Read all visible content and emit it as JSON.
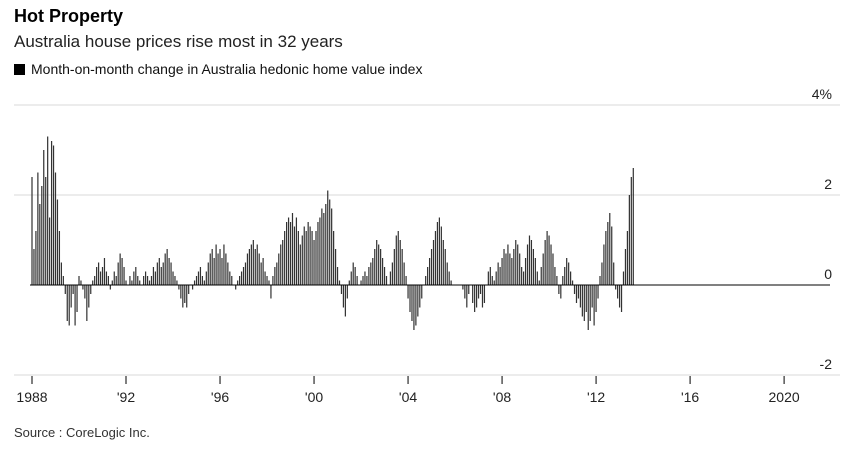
{
  "header": {
    "title": "Hot Property",
    "subtitle": "Australia house prices rise most in 32 years",
    "legend_label": "Month-on-month change in Australia hedonic home value index"
  },
  "footer": {
    "source": "Source : CoreLogic Inc."
  },
  "colors": {
    "bar": "#333333",
    "gridline": "#d9d9d9",
    "zero_line": "#000000",
    "background": "#ffffff"
  },
  "chart_data": {
    "type": "bar",
    "title": "Hot Property",
    "subtitle": "Australia house prices rise most in 32 years",
    "series_name": "Month-on-month change in Australia hedonic home value index",
    "xlabel": "",
    "ylabel": "%",
    "ylim": [
      -2,
      4
    ],
    "yticks": [
      {
        "value": 4,
        "label": "4%"
      },
      {
        "value": 2,
        "label": "2"
      },
      {
        "value": 0,
        "label": "0"
      },
      {
        "value": -2,
        "label": "-2"
      }
    ],
    "xlim": [
      1988,
      2021.4
    ],
    "xticks": [
      {
        "value": 1988,
        "label": "1988"
      },
      {
        "value": 1992,
        "label": "'92"
      },
      {
        "value": 1996,
        "label": "'96"
      },
      {
        "value": 2000,
        "label": "'00"
      },
      {
        "value": 2004,
        "label": "'04"
      },
      {
        "value": 2008,
        "label": "'08"
      },
      {
        "value": 2012,
        "label": "'12"
      },
      {
        "value": 2016,
        "label": "'16"
      },
      {
        "value": 2020,
        "label": "2020"
      }
    ],
    "start_year": 1988,
    "start_month": 1,
    "frequency": "monthly",
    "values": [
      2.4,
      0.8,
      1.2,
      2.5,
      1.8,
      2.2,
      3.0,
      2.4,
      3.3,
      1.5,
      3.2,
      3.1,
      2.5,
      1.9,
      1.2,
      0.5,
      0.2,
      -0.2,
      -0.8,
      -0.9,
      -0.5,
      -0.2,
      -0.9,
      -0.6,
      0.2,
      0.1,
      -0.1,
      -0.3,
      -0.8,
      -0.5,
      -0.2,
      0.1,
      0.2,
      0.4,
      0.5,
      0.3,
      0.4,
      0.6,
      0.3,
      0.2,
      -0.1,
      0.1,
      0.3,
      0.2,
      0.5,
      0.7,
      0.6,
      0.4,
      0.1,
      0.0,
      0.2,
      0.1,
      0.3,
      0.4,
      0.2,
      0.1,
      0.0,
      0.2,
      0.3,
      0.2,
      0.1,
      0.2,
      0.4,
      0.3,
      0.5,
      0.6,
      0.4,
      0.5,
      0.7,
      0.8,
      0.6,
      0.5,
      0.3,
      0.2,
      0.1,
      -0.1,
      -0.3,
      -0.5,
      -0.4,
      -0.5,
      -0.2,
      0.0,
      -0.1,
      0.1,
      0.2,
      0.3,
      0.4,
      0.2,
      0.1,
      0.3,
      0.5,
      0.7,
      0.8,
      0.6,
      0.9,
      0.7,
      0.8,
      0.6,
      0.9,
      0.7,
      0.5,
      0.3,
      0.2,
      0.0,
      -0.1,
      0.1,
      0.2,
      0.3,
      0.4,
      0.5,
      0.7,
      0.8,
      0.9,
      1.0,
      0.8,
      0.9,
      0.7,
      0.5,
      0.6,
      0.3,
      0.2,
      0.1,
      -0.3,
      0.2,
      0.4,
      0.5,
      0.7,
      0.9,
      1.0,
      1.2,
      1.4,
      1.5,
      1.4,
      1.6,
      1.3,
      1.5,
      1.2,
      0.9,
      1.1,
      1.3,
      1.2,
      1.4,
      1.3,
      1.2,
      1.0,
      1.2,
      1.4,
      1.5,
      1.7,
      1.6,
      1.8,
      2.1,
      1.9,
      1.7,
      1.2,
      0.8,
      0.4,
      0.1,
      -0.2,
      -0.5,
      -0.7,
      -0.3,
      0.1,
      0.3,
      0.5,
      0.4,
      0.2,
      0.0,
      0.1,
      0.2,
      0.3,
      0.2,
      0.4,
      0.5,
      0.6,
      0.8,
      1.0,
      0.9,
      0.8,
      0.6,
      0.4,
      0.2,
      0.0,
      0.3,
      0.5,
      0.8,
      1.1,
      1.2,
      1.0,
      0.8,
      0.5,
      0.2,
      -0.3,
      -0.6,
      -0.8,
      -1.0,
      -0.9,
      -0.7,
      -0.5,
      -0.3,
      0.0,
      0.2,
      0.4,
      0.6,
      0.8,
      1.0,
      1.2,
      1.4,
      1.5,
      1.3,
      1.0,
      0.8,
      0.5,
      0.3,
      0.1,
      0.0,
      0.0,
      0.0,
      0.0,
      0.0,
      -0.1,
      -0.3,
      -0.5,
      -0.2,
      0.0,
      -0.4,
      -0.6,
      -0.5,
      -0.3,
      -0.2,
      -0.5,
      -0.4,
      0.0,
      0.3,
      0.4,
      0.2,
      0.1,
      0.3,
      0.5,
      0.4,
      0.6,
      0.8,
      0.7,
      0.9,
      0.7,
      0.6,
      0.8,
      1.0,
      0.9,
      0.7,
      0.4,
      0.3,
      0.6,
      0.9,
      1.1,
      1.0,
      0.8,
      0.6,
      0.3,
      0.1,
      0.4,
      0.7,
      1.0,
      1.2,
      1.1,
      0.9,
      0.7,
      0.4,
      0.2,
      -0.2,
      -0.3,
      0.2,
      0.4,
      0.6,
      0.5,
      0.3,
      0.1,
      -0.2,
      -0.4,
      -0.3,
      -0.5,
      -0.7,
      -0.8,
      -0.6,
      -1.0,
      -0.8,
      -0.5,
      -0.9,
      -0.6,
      -0.3,
      0.2,
      0.5,
      0.9,
      1.2,
      1.4,
      1.6,
      1.3,
      0.5,
      -0.1,
      -0.3,
      -0.5,
      -0.6,
      0.3,
      0.8,
      1.2,
      2.0,
      2.4,
      2.6,
      0.0,
      0.0,
      0.0,
      0.0,
      0.0
    ]
  }
}
